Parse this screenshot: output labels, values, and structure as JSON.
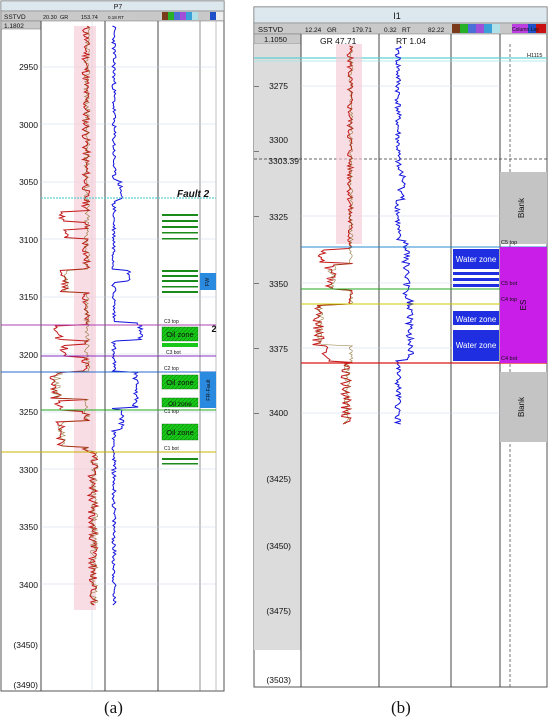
{
  "panels": {
    "a": {
      "caption": "(a)",
      "well_name": "P7",
      "depth_track": {
        "header": "SSTVD",
        "scale": "1.1802"
      },
      "gr_header": {
        "min": "20.30",
        "name": "GR",
        "max": "153.74"
      },
      "rt_header": "0.18 RT",
      "depth_ticks": [
        "2950",
        "3000",
        "3050",
        "3100",
        "3150",
        "3200",
        "3250",
        "3300",
        "3350",
        "3400",
        "(3450)",
        "(3490)"
      ],
      "fault_label": "Fault 2",
      "fault_marker": "2",
      "zone_labels": [
        "Oil zone",
        "Oil zone",
        "Oil zone",
        "Oil zone"
      ],
      "side_labels": [
        "FW",
        "FR-Fault"
      ],
      "markers": [
        "C3 top",
        "C3 bot",
        "C2 top",
        "C1 top",
        "C1 bot"
      ]
    },
    "b": {
      "caption": "(b)",
      "well_name": "I1",
      "depth_track": {
        "header": "SSTVD",
        "scale": "1.1050"
      },
      "gr_header": {
        "min": "12.24",
        "name": "GR",
        "max": "179.71"
      },
      "rt_header": {
        "min": "0.32",
        "name": "RT",
        "max": "82.22"
      },
      "gr_readout": "GR 47.71",
      "rt_readout": "RT 1.04",
      "cursor_depth": "3303.39",
      "depth_ticks": [
        "3275",
        "3300",
        "3325",
        "3350",
        "3375",
        "3400",
        "(3425)",
        "(3450)",
        "(3475)",
        "(3503)"
      ],
      "zone_labels": [
        "Water zone",
        "Water zone",
        "Water zone"
      ],
      "blank_labels": [
        "Blank",
        "Blank"
      ],
      "formation_label": "ES",
      "horizon_label": "H1115",
      "markers": [
        "C5 top",
        "C5 bot",
        "C4 top",
        "C4 bot"
      ],
      "header_right": "Column Lay"
    }
  }
}
